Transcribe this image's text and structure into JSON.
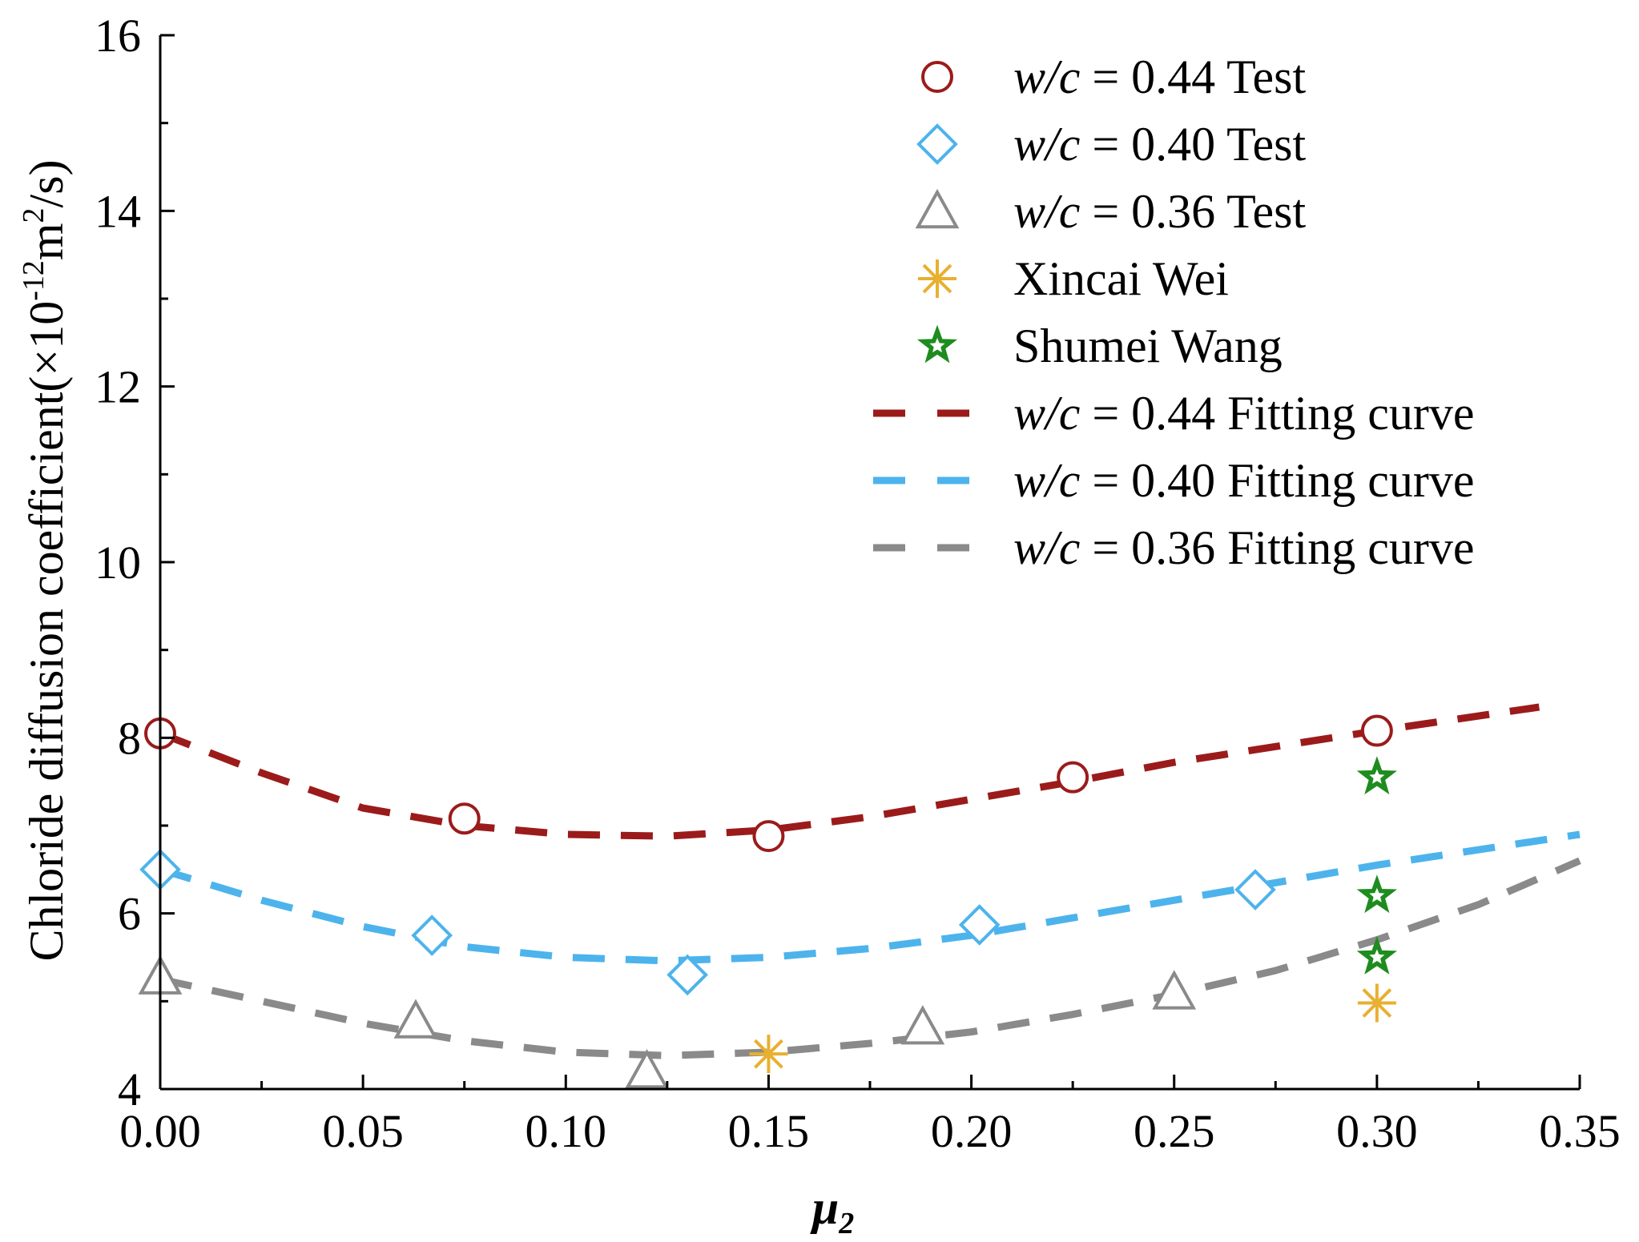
{
  "chart_data": {
    "type": "scatter",
    "xlabel": "μ",
    "xlabel_sub": "2",
    "ylabel": "Chloride diffusion coefficient(×10",
    "ylabel_exp1": "-12",
    "ylabel_mid": "m",
    "ylabel_exp2": "2",
    "ylabel_end": "/s)",
    "xlim": [
      0,
      0.35
    ],
    "ylim": [
      4,
      16
    ],
    "xticks": [
      0.0,
      0.05,
      0.1,
      0.15,
      0.2,
      0.25,
      0.3,
      0.35
    ],
    "xtick_labels": [
      "0.00",
      "0.05",
      "0.10",
      "0.15",
      "0.20",
      "0.25",
      "0.30",
      "0.35"
    ],
    "yticks": [
      4,
      6,
      8,
      10,
      12,
      14,
      16
    ],
    "ytick_labels": [
      "4",
      "6",
      "8",
      "10",
      "12",
      "14",
      "16"
    ],
    "legend_position": "top-right",
    "colors": {
      "wc044": "#9B1B1B",
      "wc040": "#4DB3EC",
      "wc036": "#8A8A8A",
      "xincai": "#E8B030",
      "shumei": "#1E8C1E"
    },
    "series": [
      {
        "name": "w/c = 0.44 Test",
        "prefix": "w/c",
        "suffix": " = 0.44 Test",
        "kind": "marker",
        "marker": "circle",
        "color_key": "wc044",
        "points": [
          [
            0.0,
            8.05
          ],
          [
            0.075,
            7.08
          ],
          [
            0.15,
            6.88
          ],
          [
            0.225,
            7.55
          ],
          [
            0.3,
            8.08
          ]
        ]
      },
      {
        "name": "w/c = 0.40 Test",
        "prefix": "w/c",
        "suffix": " = 0.40 Test",
        "kind": "marker",
        "marker": "diamond",
        "color_key": "wc040",
        "points": [
          [
            0.0,
            6.5
          ],
          [
            0.067,
            5.75
          ],
          [
            0.13,
            5.3
          ],
          [
            0.202,
            5.87
          ],
          [
            0.27,
            6.27
          ]
        ]
      },
      {
        "name": "w/c = 0.36 Test",
        "prefix": "w/c",
        "suffix": " = 0.36 Test",
        "kind": "marker",
        "marker": "triangle",
        "color_key": "wc036",
        "points": [
          [
            0.0,
            5.27
          ],
          [
            0.063,
            4.77
          ],
          [
            0.12,
            4.2
          ],
          [
            0.188,
            4.7
          ],
          [
            0.25,
            5.1
          ]
        ]
      },
      {
        "name": "Xincai Wei",
        "prefix": "",
        "suffix": "Xincai Wei",
        "kind": "marker",
        "marker": "asterisk",
        "color_key": "xincai",
        "points": [
          [
            0.15,
            4.4
          ],
          [
            0.3,
            4.98
          ]
        ]
      },
      {
        "name": "Shumei Wang",
        "prefix": "",
        "suffix": "Shumei Wang",
        "kind": "marker",
        "marker": "star",
        "color_key": "shumei",
        "points": [
          [
            0.3,
            7.55
          ],
          [
            0.3,
            6.2
          ],
          [
            0.3,
            5.5
          ]
        ]
      },
      {
        "name": "w/c = 0.44 Fitting curve",
        "prefix": "w/c",
        "suffix": " = 0.44 Fitting curve",
        "kind": "line",
        "color_key": "wc044",
        "points": [
          [
            0.0,
            8.05
          ],
          [
            0.025,
            7.6
          ],
          [
            0.05,
            7.2
          ],
          [
            0.075,
            7.0
          ],
          [
            0.1,
            6.9
          ],
          [
            0.125,
            6.88
          ],
          [
            0.15,
            6.95
          ],
          [
            0.175,
            7.1
          ],
          [
            0.2,
            7.3
          ],
          [
            0.225,
            7.5
          ],
          [
            0.25,
            7.72
          ],
          [
            0.275,
            7.9
          ],
          [
            0.3,
            8.08
          ],
          [
            0.34,
            8.35
          ]
        ]
      },
      {
        "name": "w/c = 0.40 Fitting curve",
        "prefix": "w/c",
        "suffix": " = 0.40 Fitting curve",
        "kind": "line",
        "color_key": "wc040",
        "points": [
          [
            0.0,
            6.5
          ],
          [
            0.025,
            6.15
          ],
          [
            0.05,
            5.85
          ],
          [
            0.075,
            5.62
          ],
          [
            0.1,
            5.5
          ],
          [
            0.125,
            5.46
          ],
          [
            0.15,
            5.5
          ],
          [
            0.175,
            5.6
          ],
          [
            0.2,
            5.75
          ],
          [
            0.225,
            5.95
          ],
          [
            0.25,
            6.15
          ],
          [
            0.275,
            6.35
          ],
          [
            0.3,
            6.55
          ],
          [
            0.35,
            6.9
          ]
        ]
      },
      {
        "name": "w/c = 0.36 Fitting curve",
        "prefix": "w/c",
        "suffix": " = 0.36 Fitting curve",
        "kind": "line",
        "color_key": "wc036",
        "points": [
          [
            0.0,
            5.25
          ],
          [
            0.025,
            5.0
          ],
          [
            0.05,
            4.75
          ],
          [
            0.075,
            4.55
          ],
          [
            0.1,
            4.42
          ],
          [
            0.125,
            4.38
          ],
          [
            0.15,
            4.42
          ],
          [
            0.175,
            4.52
          ],
          [
            0.2,
            4.65
          ],
          [
            0.225,
            4.85
          ],
          [
            0.25,
            5.08
          ],
          [
            0.275,
            5.35
          ],
          [
            0.3,
            5.7
          ],
          [
            0.325,
            6.1
          ],
          [
            0.35,
            6.6
          ]
        ]
      }
    ]
  }
}
